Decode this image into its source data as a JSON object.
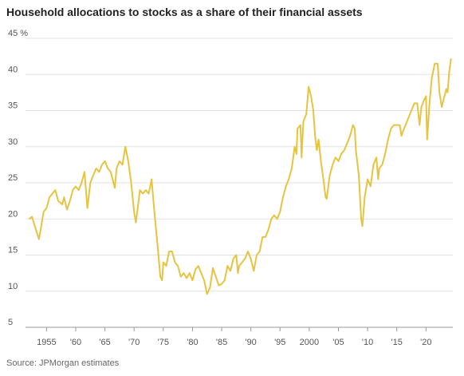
{
  "chart_data": {
    "type": "line",
    "title": "Household allocations to stocks as a share of their financial assets",
    "source": "Source: JPMorgan estimates",
    "xlim": [
      1951.4,
      2024.6
    ],
    "ylim": [
      5,
      45
    ],
    "xticks": [
      {
        "value": 1955,
        "label": "1955"
      },
      {
        "value": 1960,
        "label": "'60"
      },
      {
        "value": 1965,
        "label": "'65"
      },
      {
        "value": 1970,
        "label": "'70"
      },
      {
        "value": 1975,
        "label": "'75"
      },
      {
        "value": 1980,
        "label": "'80"
      },
      {
        "value": 1985,
        "label": "'85"
      },
      {
        "value": 1990,
        "label": "'90"
      },
      {
        "value": 1995,
        "label": "'95"
      },
      {
        "value": 2000,
        "label": "2000"
      },
      {
        "value": 2005,
        "label": "'05"
      },
      {
        "value": 2010,
        "label": "'10"
      },
      {
        "value": 2015,
        "label": "'15"
      },
      {
        "value": 2020,
        "label": "'20"
      }
    ],
    "yticks": [
      5,
      10,
      15,
      20,
      25,
      30,
      35,
      40,
      {
        "value": 45,
        "label": "45 %"
      }
    ],
    "grid": true,
    "series": [
      {
        "color": "#e6c440",
        "x": [
          1952.0,
          1952.5,
          1953,
          1953.7,
          1954,
          1954.5,
          1955,
          1955.5,
          1956,
          1956.5,
          1957,
          1957.7,
          1958,
          1958.5,
          1959,
          1959.5,
          1960,
          1960.5,
          1961,
          1961.5,
          1962,
          1962.5,
          1963,
          1963.5,
          1964,
          1964.5,
          1965,
          1965.5,
          1966,
          1966.7,
          1967,
          1967.5,
          1968,
          1968.5,
          1969,
          1969.5,
          1970,
          1970.3,
          1970.7,
          1971,
          1971.5,
          1972,
          1972.5,
          1973,
          1973.3,
          1973.7,
          1974,
          1974.5,
          1974.8,
          1975,
          1975.5,
          1976,
          1976.5,
          1977,
          1977.5,
          1978,
          1978.5,
          1979,
          1979.5,
          1980,
          1980.5,
          1981,
          1981.5,
          1982,
          1982.5,
          1983,
          1983.5,
          1984,
          1984.5,
          1985,
          1985.5,
          1986,
          1986.5,
          1987,
          1987.5,
          1987.8,
          1988,
          1988.5,
          1989,
          1989.5,
          1990,
          1990.5,
          1991,
          1991.5,
          1992,
          1992.5,
          1993,
          1993.5,
          1994,
          1994.5,
          1995,
          1995.5,
          1996,
          1996.5,
          1997,
          1997.5,
          1997.8,
          1998,
          1998.5,
          1998.7,
          1999,
          1999.5,
          1999.9,
          2000.3,
          2000.7,
          2001,
          2001.3,
          2001.6,
          2002,
          2002.5,
          2002.8,
          2003,
          2003.5,
          2004,
          2004.5,
          2005,
          2005.5,
          2006,
          2006.5,
          2007,
          2007.5,
          2007.8,
          2008,
          2008.5,
          2008.9,
          2009.1,
          2009.5,
          2010,
          2010.5,
          2011,
          2011.5,
          2011.8,
          2012,
          2012.5,
          2013,
          2013.5,
          2014,
          2014.5,
          2015,
          2015.5,
          2015.8,
          2016,
          2016.5,
          2017,
          2017.5,
          2018,
          2018.5,
          2018.9,
          2019.2,
          2019.7,
          2020.0,
          2020.2,
          2020.6,
          2021,
          2021.5,
          2022,
          2022.3,
          2022.7,
          2023,
          2023.5,
          2023.7,
          2024,
          2024.3
        ],
        "values": [
          20,
          20.3,
          19,
          17.2,
          18.5,
          21,
          21.5,
          23,
          23.5,
          24,
          22.5,
          22,
          23,
          21.3,
          22.5,
          24,
          24.5,
          24,
          25,
          26.5,
          21.5,
          25,
          26,
          27,
          26.5,
          27.5,
          28,
          27,
          26.5,
          24.3,
          27,
          28,
          27.5,
          30,
          28,
          25,
          21,
          19.5,
          22,
          24,
          23.5,
          24,
          23.5,
          25.5,
          22.5,
          19,
          16.5,
          12,
          11.5,
          14,
          13.5,
          15.5,
          15.5,
          14,
          13.5,
          12,
          12.5,
          11.8,
          12.5,
          11.5,
          13,
          13.5,
          12.5,
          11.5,
          9.6,
          10.5,
          13.2,
          12,
          10.8,
          11,
          11.5,
          13.5,
          12.8,
          14.5,
          15,
          12.5,
          13.5,
          14,
          14.5,
          15.5,
          14.5,
          12.8,
          15,
          15.5,
          17.5,
          17.5,
          18.5,
          20,
          20.5,
          20,
          21,
          23,
          24.5,
          25.5,
          27,
          30,
          29,
          32.5,
          33,
          28.5,
          33.5,
          34.5,
          38.3,
          37,
          35,
          31.5,
          29.5,
          31,
          28,
          25,
          23,
          22.8,
          26,
          27.5,
          28.5,
          28,
          29,
          29.5,
          30.5,
          31.5,
          33,
          32.5,
          29.5,
          26,
          20,
          19,
          23,
          25.5,
          24.5,
          27.5,
          28.5,
          25.5,
          27,
          27.5,
          29,
          31,
          32.5,
          33,
          33,
          33,
          31.5,
          32,
          33,
          34,
          35,
          36,
          36,
          33,
          35.5,
          36.5,
          37,
          31,
          36,
          39.5,
          41.5,
          41.5,
          37.5,
          35.5,
          36.5,
          38,
          37.5,
          40.5,
          42.2
        ]
      }
    ]
  }
}
